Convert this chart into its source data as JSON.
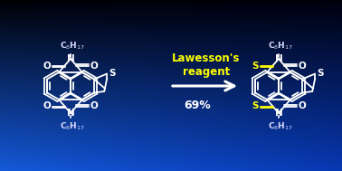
{
  "reagent_text": "Lawesson's\nreagent",
  "yield_text": "69%",
  "reagent_color": "#ffff00",
  "yield_color": "#ffffff",
  "structure_color": "#ffffff",
  "sulfur_highlight": "#ffff00",
  "label_color": "#ddddff",
  "figsize": [
    3.78,
    1.89
  ],
  "dpi": 100,
  "bg_corners": {
    "tl": [
      0.0,
      0.0,
      0.02
    ],
    "tr": [
      0.0,
      0.0,
      0.05
    ],
    "bl": [
      0.08,
      0.35,
      0.85
    ],
    "br": [
      0.03,
      0.22,
      0.7
    ]
  }
}
